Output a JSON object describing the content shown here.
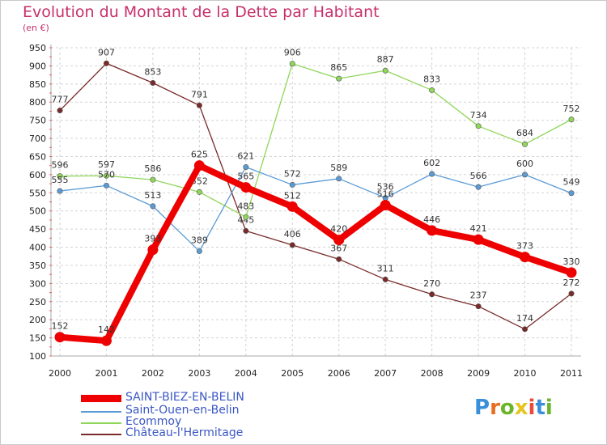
{
  "title": "Evolution du Montant de la Dette par Habitant",
  "subtitle": "(en €)",
  "logo_text": "Proxiti",
  "colors": {
    "title": "#c8306a",
    "grid": "#cccccc",
    "axis_text": "#222222",
    "legend_text": "#3a57c4",
    "logo": [
      "#3a8fd9",
      "#e86d1f",
      "#6bb52a",
      "#e8c41f",
      "#e84d3a",
      "#3a8fd9",
      "#6bb52a"
    ]
  },
  "chart_data": {
    "type": "line",
    "title": "Evolution du Montant de la Dette par Habitant",
    "subtitle": "(en €)",
    "xlabel": "",
    "ylabel": "",
    "x": [
      "2000",
      "2001",
      "2002",
      "2003",
      "2004",
      "2005",
      "2006",
      "2007",
      "2008",
      "2009",
      "2010",
      "2011"
    ],
    "ylim": [
      100,
      950
    ],
    "yticks": [
      100,
      150,
      200,
      250,
      300,
      350,
      400,
      450,
      500,
      550,
      600,
      650,
      700,
      750,
      800,
      850,
      900,
      950
    ],
    "grid": true,
    "legend_position": "bottom-left",
    "series": [
      {
        "name": "Château-l'Hermitage",
        "color": "#7a2a2a",
        "values": [
          777,
          907,
          853,
          791,
          445,
          406,
          367,
          311,
          270,
          237,
          174,
          272
        ]
      },
      {
        "name": "Ecommoy",
        "color": "#8fd65a",
        "values": [
          596,
          597,
          586,
          552,
          483,
          906,
          865,
          887,
          833,
          734,
          684,
          752
        ]
      },
      {
        "name": "Saint-Ouen-en-Belin",
        "color": "#5b9bd5",
        "values": [
          555,
          570,
          513,
          389,
          621,
          572,
          589,
          536,
          602,
          566,
          600,
          549
        ]
      },
      {
        "name": "SAINT-BIEZ-EN-BELIN",
        "color": "#ee0000",
        "values": [
          152,
          142,
          393,
          625,
          565,
          512,
          420,
          516,
          446,
          421,
          373,
          330
        ]
      }
    ]
  },
  "legend": [
    {
      "label": "SAINT-BIEZ-EN-BELIN",
      "color": "#ee0000"
    },
    {
      "label": "Saint-Ouen-en-Belin",
      "color": "#5b9bd5"
    },
    {
      "label": "Ecommoy",
      "color": "#8fd65a"
    },
    {
      "label": "Château-l'Hermitage",
      "color": "#7a2a2a"
    }
  ]
}
